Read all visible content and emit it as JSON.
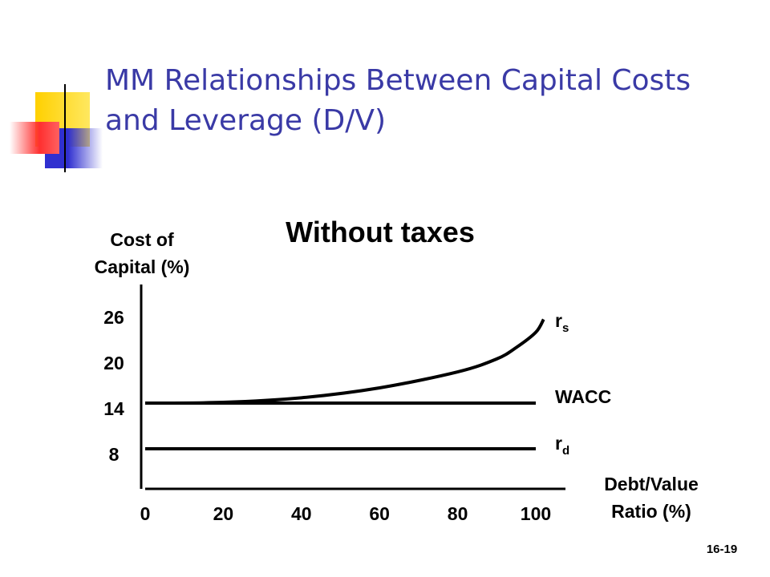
{
  "slide": {
    "title_lines": [
      "MM Relationships Between Capital Costs",
      "and Leverage (D/V)"
    ],
    "number": "16-19"
  },
  "chart_data": {
    "type": "line",
    "title": "Without taxes",
    "y_label_lines": [
      "Cost of",
      "Capital (%)"
    ],
    "x_label_lines": [
      "Debt/Value",
      "Ratio (%)"
    ],
    "xlim": [
      0,
      107.6
    ],
    "xticks": [
      0,
      20,
      40,
      60,
      80,
      100
    ],
    "ylim": [
      3,
      30
    ],
    "yticks": [
      8,
      14,
      20,
      26
    ],
    "series": [
      {
        "name": "rs",
        "color": "#000000",
        "x": [
          0,
          20,
          40,
          60,
          80,
          90,
          95,
          100,
          102
        ],
        "values": [
          14,
          14.1,
          14.7,
          16,
          18.1,
          19.8,
          21.3,
          23.3,
          25
        ]
      },
      {
        "name": "WACC",
        "color": "#000000",
        "x": [
          0,
          100
        ],
        "values": [
          14,
          14
        ]
      },
      {
        "name": "rd",
        "color": "#000000",
        "x": [
          0,
          100
        ],
        "values": [
          8,
          8
        ]
      }
    ]
  }
}
